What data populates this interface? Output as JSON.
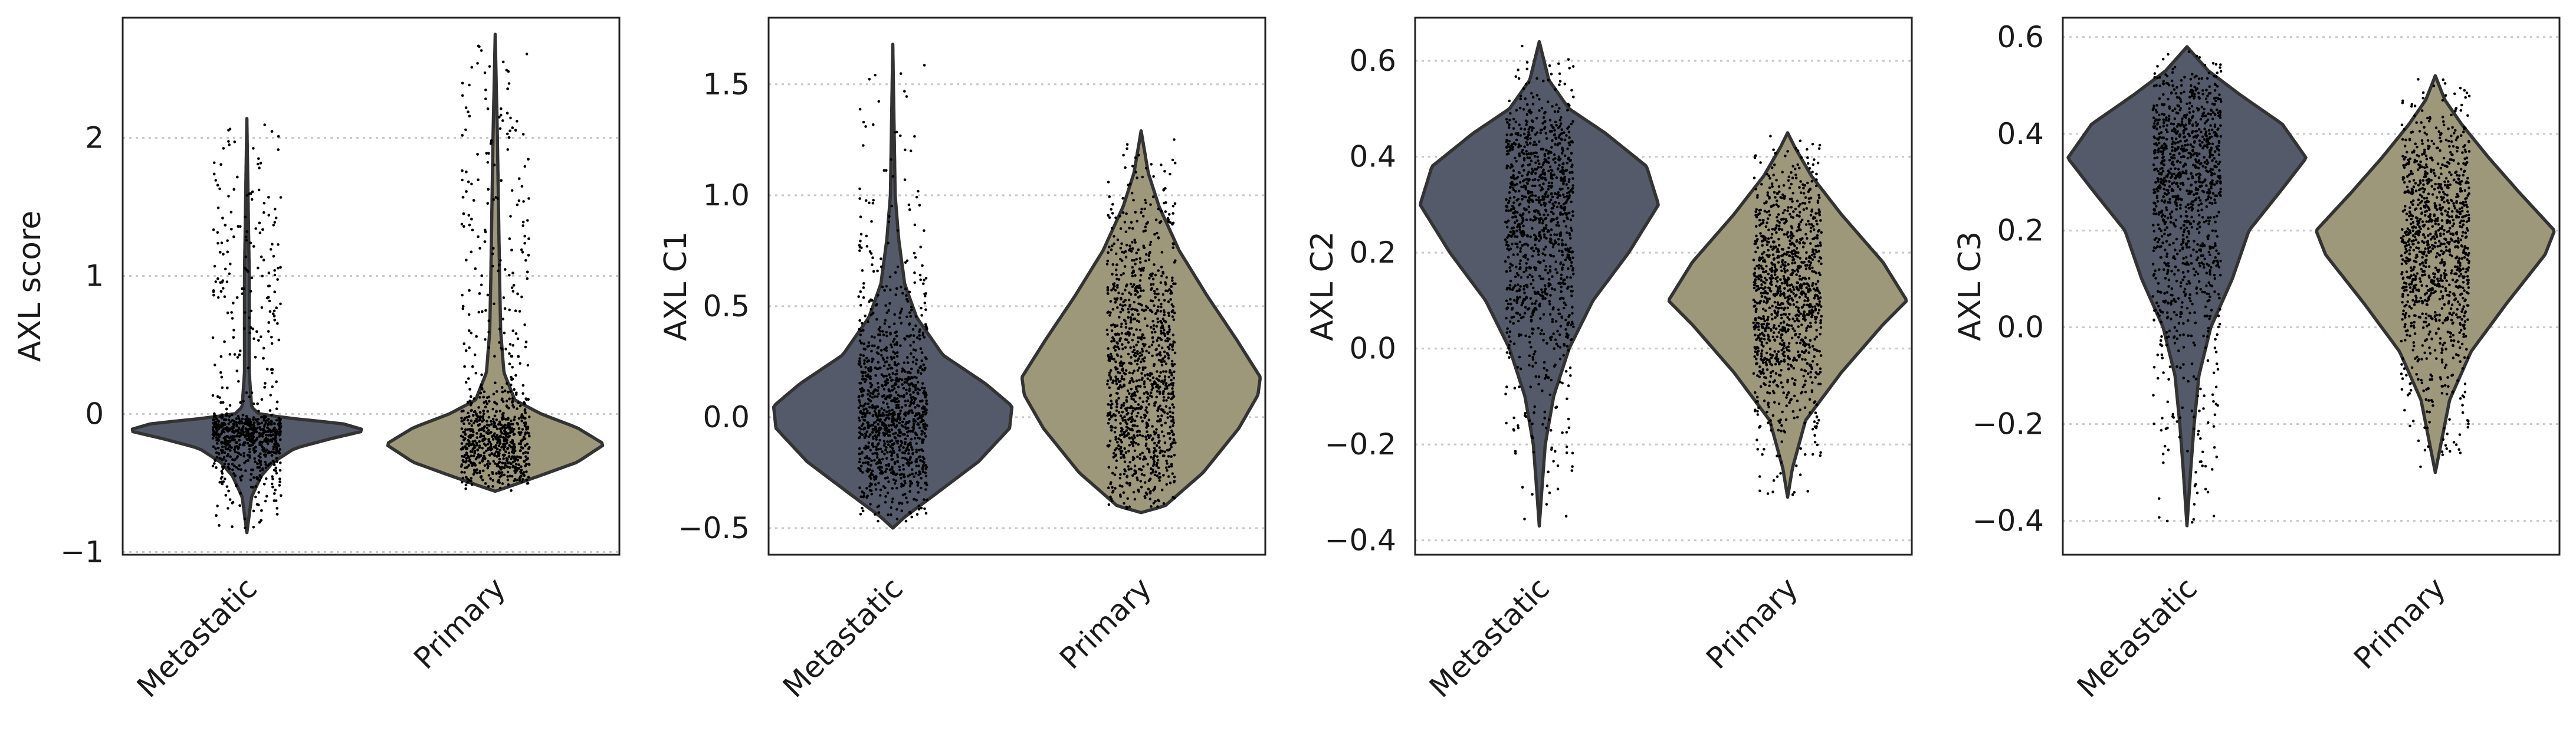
{
  "chart_data": [
    {
      "type": "violin",
      "ylabel": "AXL score",
      "categories": [
        "Metastatic",
        "Primary"
      ],
      "ylim": [
        -1.02,
        2.87
      ],
      "yticks": [
        -1,
        0,
        1,
        2
      ],
      "ytick_labels": [
        "−1",
        "0",
        "1",
        "2"
      ],
      "grid": true,
      "series": [
        {
          "category": "Metastatic",
          "color": "#555a6a",
          "min": -0.86,
          "max": 2.14,
          "center": -0.12,
          "spread": 0.055,
          "max_half_width": 0.48,
          "profile": [
            [
              -0.86,
              0.0
            ],
            [
              -0.6,
              0.04
            ],
            [
              -0.45,
              0.12
            ],
            [
              -0.35,
              0.22
            ],
            [
              -0.25,
              0.4
            ],
            [
              -0.18,
              0.7
            ],
            [
              -0.12,
              1.0
            ],
            [
              -0.07,
              0.8
            ],
            [
              -0.03,
              0.35
            ],
            [
              0.0,
              0.1
            ],
            [
              0.05,
              0.04
            ],
            [
              0.3,
              0.02
            ],
            [
              1.0,
              0.02
            ],
            [
              2.14,
              0.0
            ]
          ]
        },
        {
          "category": "Primary",
          "color": "#9e987a",
          "min": -0.56,
          "max": 2.75,
          "center": -0.2,
          "spread": 0.09,
          "max_half_width": 0.44,
          "profile": [
            [
              -0.56,
              0.0
            ],
            [
              -0.52,
              0.15
            ],
            [
              -0.45,
              0.4
            ],
            [
              -0.35,
              0.75
            ],
            [
              -0.22,
              1.0
            ],
            [
              -0.1,
              0.75
            ],
            [
              0.0,
              0.42
            ],
            [
              0.1,
              0.18
            ],
            [
              0.3,
              0.08
            ],
            [
              0.6,
              0.05
            ],
            [
              1.0,
              0.04
            ],
            [
              1.5,
              0.03
            ],
            [
              2.0,
              0.02
            ],
            [
              2.75,
              0.0
            ]
          ]
        }
      ]
    },
    {
      "type": "violin",
      "ylabel": "AXL C1",
      "categories": [
        "Metastatic",
        "Primary"
      ],
      "ylim": [
        -0.62,
        1.8
      ],
      "yticks": [
        -0.5,
        0.0,
        0.5,
        1.0,
        1.5
      ],
      "ytick_labels": [
        "−0.5",
        "0.0",
        "0.5",
        "1.0",
        "1.5"
      ],
      "grid": true,
      "series": [
        {
          "category": "Metastatic",
          "color": "#555a6a",
          "min": -0.5,
          "max": 1.68,
          "center": 0.0,
          "spread": 0.17,
          "max_half_width": 0.48,
          "profile": [
            [
              -0.5,
              0.0
            ],
            [
              -0.45,
              0.1
            ],
            [
              -0.35,
              0.35
            ],
            [
              -0.2,
              0.72
            ],
            [
              -0.05,
              0.98
            ],
            [
              0.05,
              1.0
            ],
            [
              0.15,
              0.78
            ],
            [
              0.28,
              0.42
            ],
            [
              0.45,
              0.2
            ],
            [
              0.6,
              0.1
            ],
            [
              0.8,
              0.05
            ],
            [
              1.0,
              0.02
            ],
            [
              1.68,
              0.0
            ]
          ]
        },
        {
          "category": "Primary",
          "color": "#9e987a",
          "min": -0.43,
          "max": 1.29,
          "center": 0.2,
          "spread": 0.3,
          "max_half_width": 0.48,
          "profile": [
            [
              -0.43,
              0.0
            ],
            [
              -0.4,
              0.2
            ],
            [
              -0.25,
              0.52
            ],
            [
              -0.05,
              0.82
            ],
            [
              0.1,
              0.98
            ],
            [
              0.18,
              1.0
            ],
            [
              0.35,
              0.8
            ],
            [
              0.55,
              0.55
            ],
            [
              0.75,
              0.32
            ],
            [
              0.95,
              0.15
            ],
            [
              1.1,
              0.06
            ],
            [
              1.29,
              0.0
            ]
          ]
        }
      ]
    },
    {
      "type": "violin",
      "ylabel": "AXL C2",
      "categories": [
        "Metastatic",
        "Primary"
      ],
      "ylim": [
        -0.43,
        0.69
      ],
      "yticks": [
        -0.4,
        -0.2,
        0.0,
        0.2,
        0.4,
        0.6
      ],
      "ytick_labels": [
        "−0.4",
        "−0.2",
        "0.0",
        "0.2",
        "0.4",
        "0.6"
      ],
      "grid": true,
      "series": [
        {
          "category": "Metastatic",
          "color": "#555a6a",
          "min": -0.37,
          "max": 0.64,
          "center": 0.28,
          "spread": 0.12,
          "max_half_width": 0.48,
          "profile": [
            [
              -0.37,
              0.0
            ],
            [
              -0.3,
              0.02
            ],
            [
              -0.2,
              0.05
            ],
            [
              -0.1,
              0.12
            ],
            [
              0.0,
              0.25
            ],
            [
              0.1,
              0.45
            ],
            [
              0.2,
              0.75
            ],
            [
              0.3,
              1.0
            ],
            [
              0.38,
              0.9
            ],
            [
              0.45,
              0.55
            ],
            [
              0.5,
              0.25
            ],
            [
              0.56,
              0.08
            ],
            [
              0.64,
              0.0
            ]
          ]
        },
        {
          "category": "Primary",
          "color": "#9e987a",
          "min": -0.31,
          "max": 0.45,
          "center": 0.1,
          "spread": 0.1,
          "max_half_width": 0.48,
          "profile": [
            [
              -0.31,
              0.0
            ],
            [
              -0.25,
              0.04
            ],
            [
              -0.15,
              0.15
            ],
            [
              -0.05,
              0.45
            ],
            [
              0.05,
              0.8
            ],
            [
              0.1,
              1.0
            ],
            [
              0.18,
              0.8
            ],
            [
              0.28,
              0.45
            ],
            [
              0.36,
              0.2
            ],
            [
              0.42,
              0.06
            ],
            [
              0.45,
              0.0
            ]
          ]
        }
      ]
    },
    {
      "type": "violin",
      "ylabel": "AXL C3",
      "categories": [
        "Metastatic",
        "Primary"
      ],
      "ylim": [
        -0.47,
        0.64
      ],
      "yticks": [
        -0.4,
        -0.2,
        0.0,
        0.2,
        0.4,
        0.6
      ],
      "ytick_labels": [
        "−0.4",
        "−0.2",
        "0.0",
        "0.2",
        "0.4",
        "0.6"
      ],
      "grid": true,
      "series": [
        {
          "category": "Metastatic",
          "color": "#555a6a",
          "min": -0.41,
          "max": 0.58,
          "center": 0.3,
          "spread": 0.12,
          "max_half_width": 0.48,
          "profile": [
            [
              -0.41,
              0.0
            ],
            [
              -0.3,
              0.03
            ],
            [
              -0.2,
              0.06
            ],
            [
              -0.1,
              0.1
            ],
            [
              0.0,
              0.2
            ],
            [
              0.1,
              0.38
            ],
            [
              0.2,
              0.52
            ],
            [
              0.28,
              0.78
            ],
            [
              0.35,
              1.0
            ],
            [
              0.42,
              0.8
            ],
            [
              0.48,
              0.45
            ],
            [
              0.53,
              0.18
            ],
            [
              0.58,
              0.0
            ]
          ]
        },
        {
          "category": "Primary",
          "color": "#9e987a",
          "min": -0.3,
          "max": 0.52,
          "center": 0.15,
          "spread": 0.12,
          "max_half_width": 0.48,
          "profile": [
            [
              -0.3,
              0.0
            ],
            [
              -0.25,
              0.04
            ],
            [
              -0.15,
              0.12
            ],
            [
              -0.05,
              0.3
            ],
            [
              0.05,
              0.6
            ],
            [
              0.15,
              0.92
            ],
            [
              0.2,
              1.0
            ],
            [
              0.28,
              0.7
            ],
            [
              0.35,
              0.45
            ],
            [
              0.42,
              0.22
            ],
            [
              0.47,
              0.08
            ],
            [
              0.52,
              0.0
            ]
          ]
        }
      ]
    }
  ]
}
